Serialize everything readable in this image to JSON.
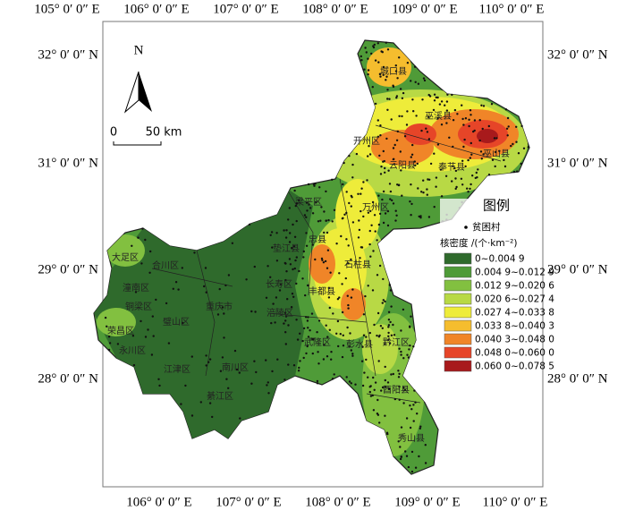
{
  "map": {
    "lon_labels_top": [
      "105° 0′ 0″ E",
      "106° 0′ 0″ E",
      "107° 0′ 0″ E",
      "108° 0′ 0″ E",
      "109° 0′ 0″ E",
      "110° 0′ 0″ E"
    ],
    "lon_labels_bottom": [
      "106° 0′ 0″ E",
      "107° 0′ 0″ E",
      "108° 0′ 0″ E",
      "109° 0′ 0″ E",
      "110° 0′ 0″ E"
    ],
    "lat_labels_left": [
      "32° 0′ 0″ N",
      "31° 0′ 0″ N",
      "29° 0′ 0″ N",
      "28° 0′ 0″ N"
    ],
    "lat_labels_right": [
      "32° 0′ 0″ N",
      "31° 0′ 0″ N",
      "29° 0′ 0″ N",
      "28° 0′ 0″ N"
    ],
    "north": "N",
    "scale": {
      "start": "0",
      "end": "50 km"
    },
    "legend": {
      "title": "图例",
      "village": "贫困村",
      "density_title": "核密度 /(个·km⁻²)",
      "classes": [
        {
          "label": "0~0.004 9",
          "color": "#2f6a2c"
        },
        {
          "label": "0.004 9~0.012 9",
          "color": "#4f9b38"
        },
        {
          "label": "0.012 9~0.020 6",
          "color": "#82c040"
        },
        {
          "label": "0.020 6~0.027 4",
          "color": "#b8d945"
        },
        {
          "label": "0.027 4~0.033 8",
          "color": "#eeec3a"
        },
        {
          "label": "0.033 8~0.040 3",
          "color": "#f5bd2e"
        },
        {
          "label": "0.040 3~0.048 0",
          "color": "#f08528"
        },
        {
          "label": "0.048 0~0.060 0",
          "color": "#e64528"
        },
        {
          "label": "0.060 0~0.078 5",
          "color": "#a81a1c"
        }
      ]
    },
    "districts": [
      "城口县",
      "巫溪县",
      "开州区",
      "云阳县",
      "奉节县",
      "巫山县",
      "万州区",
      "梁平区",
      "忠县",
      "垫江县",
      "石柱县",
      "丰都县",
      "长寿区",
      "涪陵区",
      "合川区",
      "潼南区",
      "铜梁区",
      "大足区",
      "荣昌区",
      "永川区",
      "璧山区",
      "重庆市",
      "江津区",
      "南川区",
      "綦江区",
      "武隆区",
      "彭水县",
      "黔江区",
      "酉阳县",
      "秀山县"
    ]
  }
}
